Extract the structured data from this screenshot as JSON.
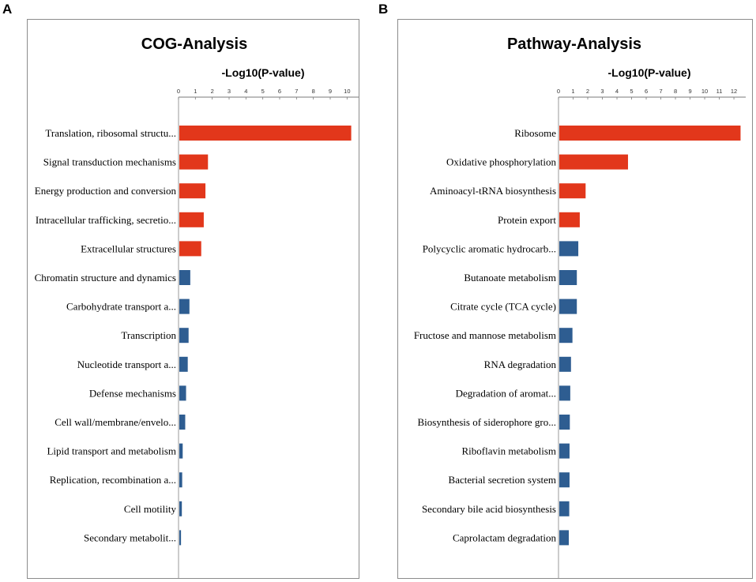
{
  "panels": [
    {
      "letter": "A",
      "chart_data": {
        "type": "bar",
        "orientation": "horizontal",
        "title": "COG-Analysis",
        "xlabel": "-Log10(P-value)",
        "xlim": [
          0,
          10.5
        ],
        "xticks": [
          "0",
          "1",
          "2",
          "3",
          "4",
          "5",
          "6",
          "7",
          "8",
          "9",
          "10"
        ],
        "categories": [
          "Translation, ribosomal structu...",
          "Signal transduction mechanisms",
          "Energy production and conversion",
          "Intracellular trafficking, secretio...",
          "Extracellular structures",
          "Chromatin structure and dynamics",
          "Carbohydrate transport a...",
          "Transcription",
          "Nucleotide transport a...",
          "Defense mechanisms",
          "Cell wall/membrane/envelo...",
          "Lipid transport and metabolism",
          "Replication, recombination a...",
          "Cell motility",
          "Secondary metabolit..."
        ],
        "values": [
          10.2,
          1.7,
          1.55,
          1.45,
          1.3,
          0.65,
          0.6,
          0.55,
          0.5,
          0.4,
          0.35,
          0.2,
          0.17,
          0.15,
          0.1
        ],
        "colors": [
          "#e2371b",
          "#e2371b",
          "#e2371b",
          "#e2371b",
          "#e2371b",
          "#2e5d91",
          "#2e5d91",
          "#2e5d91",
          "#2e5d91",
          "#2e5d91",
          "#2e5d91",
          "#2e5d91",
          "#2e5d91",
          "#2e5d91",
          "#2e5d91"
        ]
      }
    },
    {
      "letter": "B",
      "chart_data": {
        "type": "bar",
        "orientation": "horizontal",
        "title": "Pathway-Analysis",
        "xlabel": "-Log10(P-value)",
        "xlim": [
          0,
          12.7
        ],
        "xticks": [
          "0",
          "1",
          "2",
          "3",
          "4",
          "5",
          "6",
          "7",
          "8",
          "9",
          "10",
          "11",
          "12"
        ],
        "categories": [
          "Ribosome",
          "Oxidative phosphorylation",
          "Aminoacyl-tRNA biosynthesis",
          "Protein export",
          "Polycyclic aromatic hydrocarb...",
          "Butanoate metabolism",
          "Citrate cycle (TCA cycle)",
          "Fructose and mannose metabolism",
          "RNA degradation",
          "Degradation of aromat...",
          "Biosynthesis of siderophore gro...",
          "Riboflavin metabolism",
          "Bacterial secretion system",
          "Secondary bile acid biosynthesis",
          "Caprolactam degradation"
        ],
        "values": [
          12.4,
          4.7,
          1.8,
          1.4,
          1.3,
          1.2,
          1.2,
          0.9,
          0.8,
          0.75,
          0.72,
          0.7,
          0.7,
          0.68,
          0.65
        ],
        "colors": [
          "#e2371b",
          "#e2371b",
          "#e2371b",
          "#e2371b",
          "#2e5d91",
          "#2e5d91",
          "#2e5d91",
          "#2e5d91",
          "#2e5d91",
          "#2e5d91",
          "#2e5d91",
          "#2e5d91",
          "#2e5d91",
          "#2e5d91",
          "#2e5d91"
        ]
      }
    }
  ]
}
